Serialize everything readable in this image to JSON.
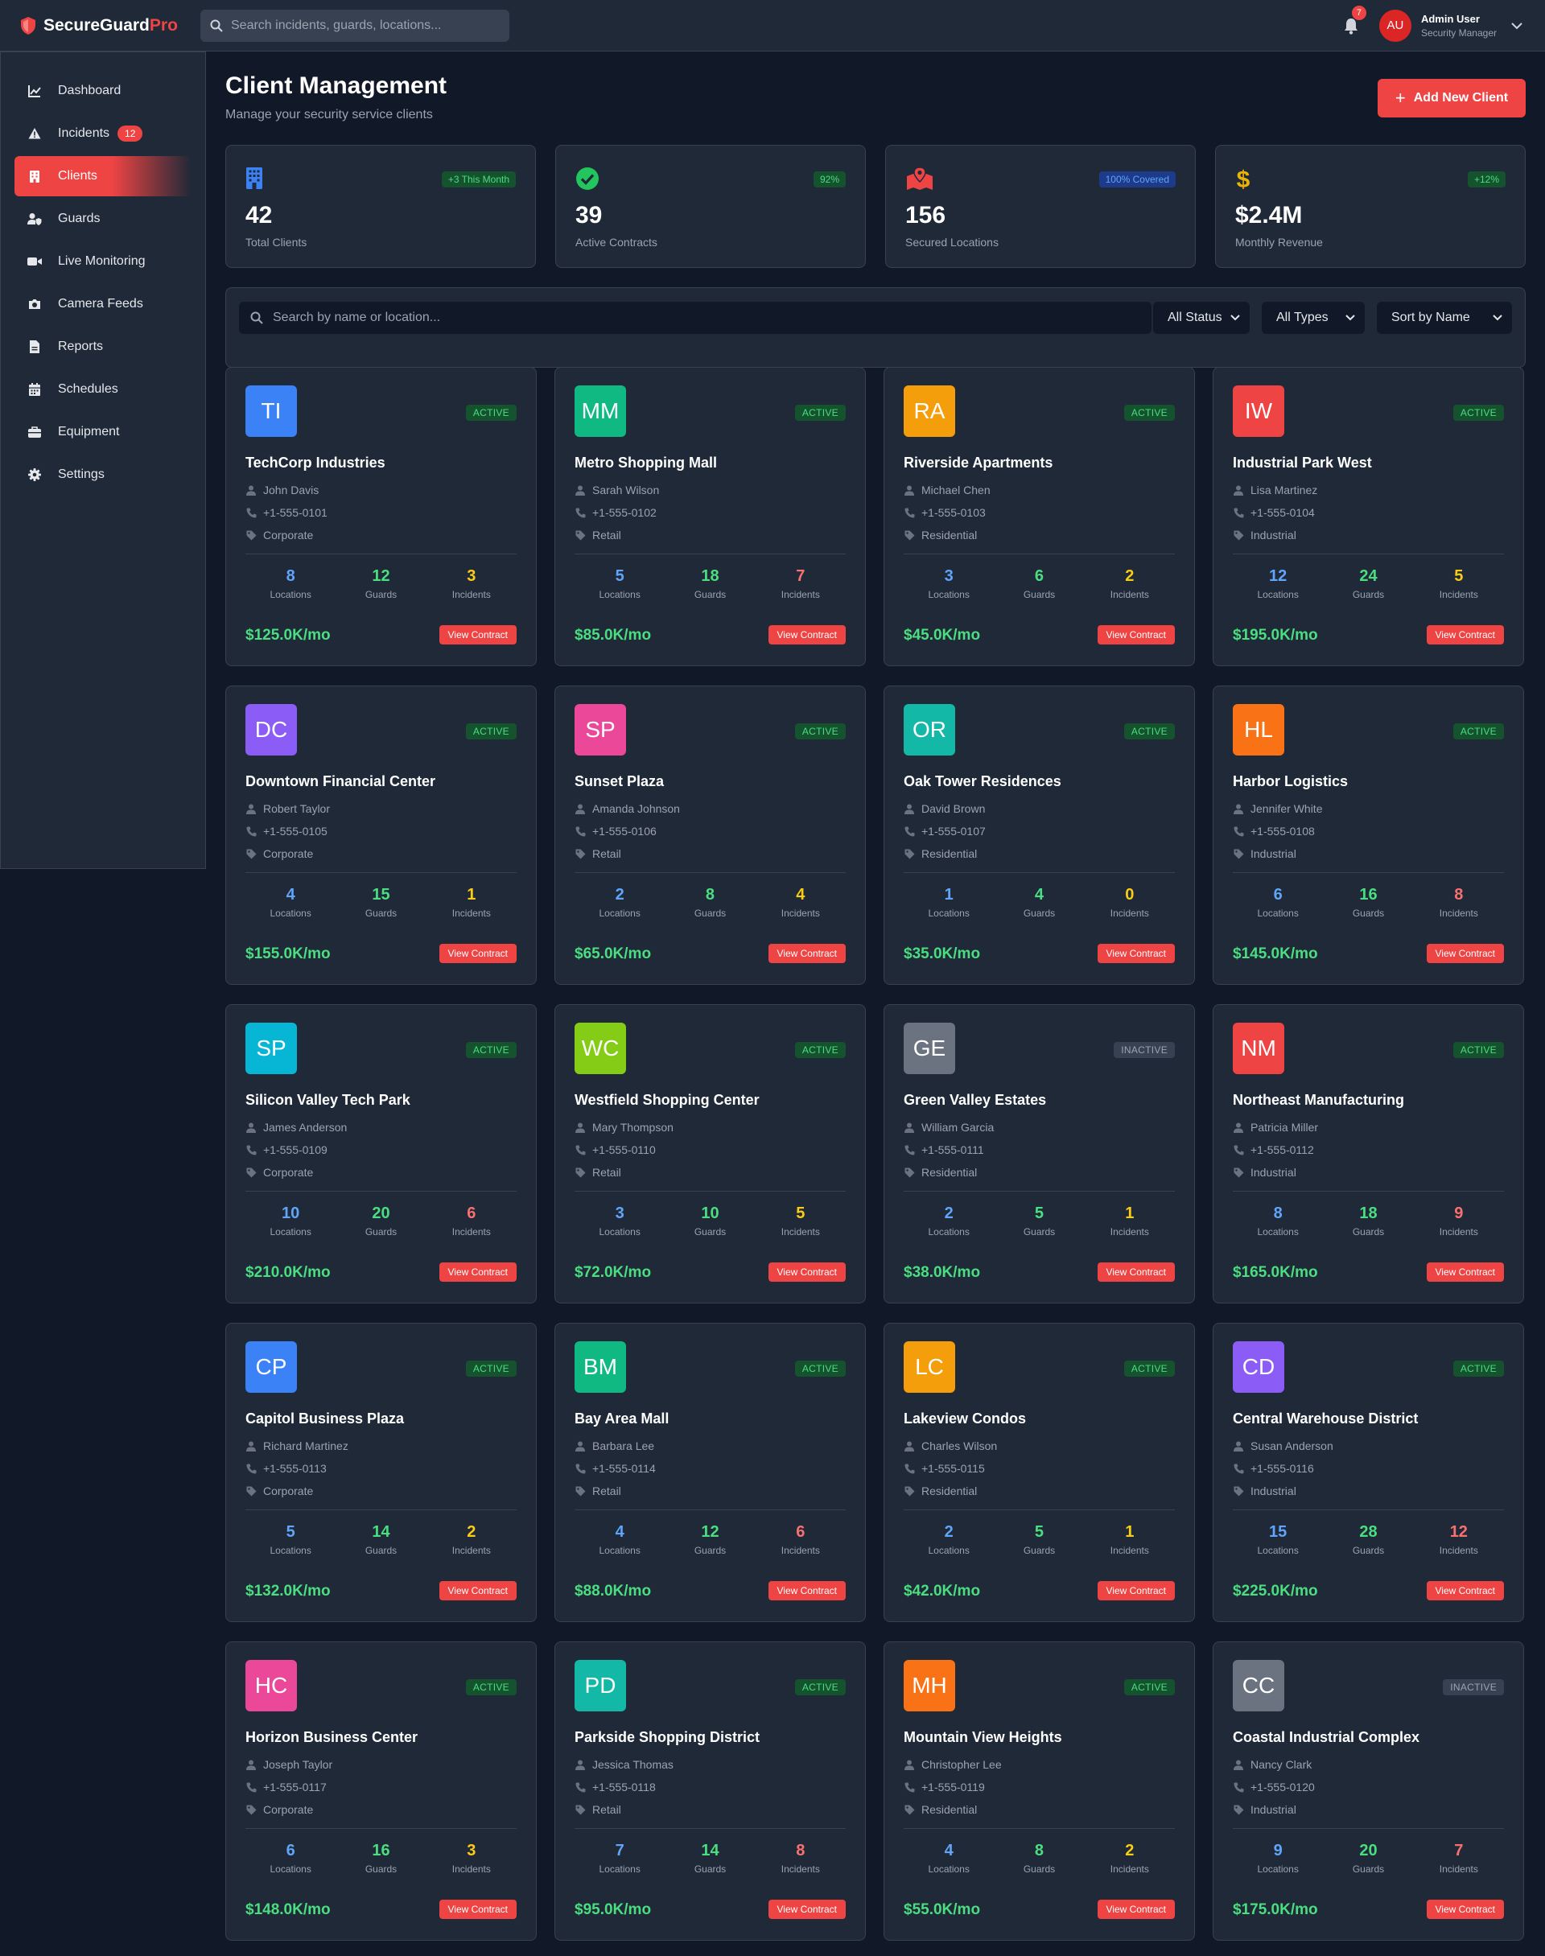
{
  "app": {
    "brand_main": "SecureGuard",
    "brand_accent": "Pro"
  },
  "topbar": {
    "search_placeholder": "Search incidents, guards, locations...",
    "notification_count": "7",
    "user": {
      "initials": "AU",
      "name": "Admin User",
      "role": "Security Manager"
    }
  },
  "sidebar": {
    "items": [
      {
        "label": "Dashboard",
        "icon": "chart-line-icon"
      },
      {
        "label": "Incidents",
        "icon": "warning-icon",
        "badge": "12"
      },
      {
        "label": "Clients",
        "icon": "building-icon",
        "active": true
      },
      {
        "label": "Guards",
        "icon": "user-shield-icon"
      },
      {
        "label": "Live Monitoring",
        "icon": "video-icon"
      },
      {
        "label": "Camera Feeds",
        "icon": "camera-icon"
      },
      {
        "label": "Reports",
        "icon": "file-icon"
      },
      {
        "label": "Schedules",
        "icon": "calendar-icon"
      },
      {
        "label": "Equipment",
        "icon": "toolbox-icon"
      },
      {
        "label": "Settings",
        "icon": "gear-icon"
      }
    ]
  },
  "page": {
    "title": "Client Management",
    "subtitle": "Manage your security service clients",
    "add_button": "Add New Client"
  },
  "stats": [
    {
      "value": "42",
      "label": "Total Clients",
      "badge": "+3 This Month",
      "icon": "building-icon",
      "color": "#3b82f6"
    },
    {
      "value": "39",
      "label": "Active Contracts",
      "badge": "92%",
      "icon": "check-circle-icon",
      "color": "#22c55e"
    },
    {
      "value": "156",
      "label": "Secured Locations",
      "badge": "100% Covered",
      "icon": "map-marked-icon",
      "color": "#ef4444"
    },
    {
      "value": "$2.4M",
      "label": "Monthly Revenue",
      "badge": "+12%",
      "icon": "dollar-icon",
      "color": "#eab308"
    }
  ],
  "filters": {
    "search_placeholder": "Search by name or location...",
    "status": "All Status",
    "type": "All Types",
    "sort": "Sort by Name"
  },
  "metric_labels": {
    "locations": "Locations",
    "guards": "Guards",
    "incidents": "Incidents"
  },
  "view_contract_label": "View Contract",
  "clients": [
    {
      "initials": "TI",
      "color": "#3b82f6",
      "status": "ACTIVE",
      "name": "TechCorp Industries",
      "contact": "John Davis",
      "phone": "+1-555-0101",
      "type": "Corporate",
      "locations": "8",
      "guards": "12",
      "incidents": "3",
      "revenue": "$125.0K/mo"
    },
    {
      "initials": "MM",
      "color": "#10b981",
      "status": "ACTIVE",
      "name": "Metro Shopping Mall",
      "contact": "Sarah Wilson",
      "phone": "+1-555-0102",
      "type": "Retail",
      "locations": "5",
      "guards": "18",
      "incidents": "7",
      "revenue": "$85.0K/mo"
    },
    {
      "initials": "RA",
      "color": "#f59e0b",
      "status": "ACTIVE",
      "name": "Riverside Apartments",
      "contact": "Michael Chen",
      "phone": "+1-555-0103",
      "type": "Residential",
      "locations": "3",
      "guards": "6",
      "incidents": "2",
      "revenue": "$45.0K/mo"
    },
    {
      "initials": "IW",
      "color": "#ef4444",
      "status": "ACTIVE",
      "name": "Industrial Park West",
      "contact": "Lisa Martinez",
      "phone": "+1-555-0104",
      "type": "Industrial",
      "locations": "12",
      "guards": "24",
      "incidents": "5",
      "revenue": "$195.0K/mo"
    },
    {
      "initials": "DC",
      "color": "#8b5cf6",
      "status": "ACTIVE",
      "name": "Downtown Financial Center",
      "contact": "Robert Taylor",
      "phone": "+1-555-0105",
      "type": "Corporate",
      "locations": "4",
      "guards": "15",
      "incidents": "1",
      "revenue": "$155.0K/mo"
    },
    {
      "initials": "SP",
      "color": "#ec4899",
      "status": "ACTIVE",
      "name": "Sunset Plaza",
      "contact": "Amanda Johnson",
      "phone": "+1-555-0106",
      "type": "Retail",
      "locations": "2",
      "guards": "8",
      "incidents": "4",
      "revenue": "$65.0K/mo"
    },
    {
      "initials": "OR",
      "color": "#14b8a6",
      "status": "ACTIVE",
      "name": "Oak Tower Residences",
      "contact": "David Brown",
      "phone": "+1-555-0107",
      "type": "Residential",
      "locations": "1",
      "guards": "4",
      "incidents": "0",
      "revenue": "$35.0K/mo"
    },
    {
      "initials": "HL",
      "color": "#f97316",
      "status": "ACTIVE",
      "name": "Harbor Logistics",
      "contact": "Jennifer White",
      "phone": "+1-555-0108",
      "type": "Industrial",
      "locations": "6",
      "guards": "16",
      "incidents": "8",
      "revenue": "$145.0K/mo"
    },
    {
      "initials": "SP",
      "color": "#06b6d4",
      "status": "ACTIVE",
      "name": "Silicon Valley Tech Park",
      "contact": "James Anderson",
      "phone": "+1-555-0109",
      "type": "Corporate",
      "locations": "10",
      "guards": "20",
      "incidents": "6",
      "revenue": "$210.0K/mo"
    },
    {
      "initials": "WC",
      "color": "#84cc16",
      "status": "ACTIVE",
      "name": "Westfield Shopping Center",
      "contact": "Mary Thompson",
      "phone": "+1-555-0110",
      "type": "Retail",
      "locations": "3",
      "guards": "10",
      "incidents": "5",
      "revenue": "$72.0K/mo"
    },
    {
      "initials": "GE",
      "color": "#6b7280",
      "status": "INACTIVE",
      "name": "Green Valley Estates",
      "contact": "William Garcia",
      "phone": "+1-555-0111",
      "type": "Residential",
      "locations": "2",
      "guards": "5",
      "incidents": "1",
      "revenue": "$38.0K/mo"
    },
    {
      "initials": "NM",
      "color": "#ef4444",
      "status": "ACTIVE",
      "name": "Northeast Manufacturing",
      "contact": "Patricia Miller",
      "phone": "+1-555-0112",
      "type": "Industrial",
      "locations": "8",
      "guards": "18",
      "incidents": "9",
      "revenue": "$165.0K/mo"
    },
    {
      "initials": "CP",
      "color": "#3b82f6",
      "status": "ACTIVE",
      "name": "Capitol Business Plaza",
      "contact": "Richard Martinez",
      "phone": "+1-555-0113",
      "type": "Corporate",
      "locations": "5",
      "guards": "14",
      "incidents": "2",
      "revenue": "$132.0K/mo"
    },
    {
      "initials": "BM",
      "color": "#10b981",
      "status": "ACTIVE",
      "name": "Bay Area Mall",
      "contact": "Barbara Lee",
      "phone": "+1-555-0114",
      "type": "Retail",
      "locations": "4",
      "guards": "12",
      "incidents": "6",
      "revenue": "$88.0K/mo"
    },
    {
      "initials": "LC",
      "color": "#f59e0b",
      "status": "ACTIVE",
      "name": "Lakeview Condos",
      "contact": "Charles Wilson",
      "phone": "+1-555-0115",
      "type": "Residential",
      "locations": "2",
      "guards": "5",
      "incidents": "1",
      "revenue": "$42.0K/mo"
    },
    {
      "initials": "CD",
      "color": "#8b5cf6",
      "status": "ACTIVE",
      "name": "Central Warehouse District",
      "contact": "Susan Anderson",
      "phone": "+1-555-0116",
      "type": "Industrial",
      "locations": "15",
      "guards": "28",
      "incidents": "12",
      "revenue": "$225.0K/mo"
    },
    {
      "initials": "HC",
      "color": "#ec4899",
      "status": "ACTIVE",
      "name": "Horizon Business Center",
      "contact": "Joseph Taylor",
      "phone": "+1-555-0117",
      "type": "Corporate",
      "locations": "6",
      "guards": "16",
      "incidents": "3",
      "revenue": "$148.0K/mo"
    },
    {
      "initials": "PD",
      "color": "#14b8a6",
      "status": "ACTIVE",
      "name": "Parkside Shopping District",
      "contact": "Jessica Thomas",
      "phone": "+1-555-0118",
      "type": "Retail",
      "locations": "7",
      "guards": "14",
      "incidents": "8",
      "revenue": "$95.0K/mo"
    },
    {
      "initials": "MH",
      "color": "#f97316",
      "status": "ACTIVE",
      "name": "Mountain View Heights",
      "contact": "Christopher Lee",
      "phone": "+1-555-0119",
      "type": "Residential",
      "locations": "4",
      "guards": "8",
      "incidents": "2",
      "revenue": "$55.0K/mo"
    },
    {
      "initials": "CC",
      "color": "#6b7280",
      "status": "INACTIVE",
      "name": "Coastal Industrial Complex",
      "contact": "Nancy Clark",
      "phone": "+1-555-0120",
      "type": "Industrial",
      "locations": "9",
      "guards": "20",
      "incidents": "7",
      "revenue": "$175.0K/mo"
    }
  ]
}
